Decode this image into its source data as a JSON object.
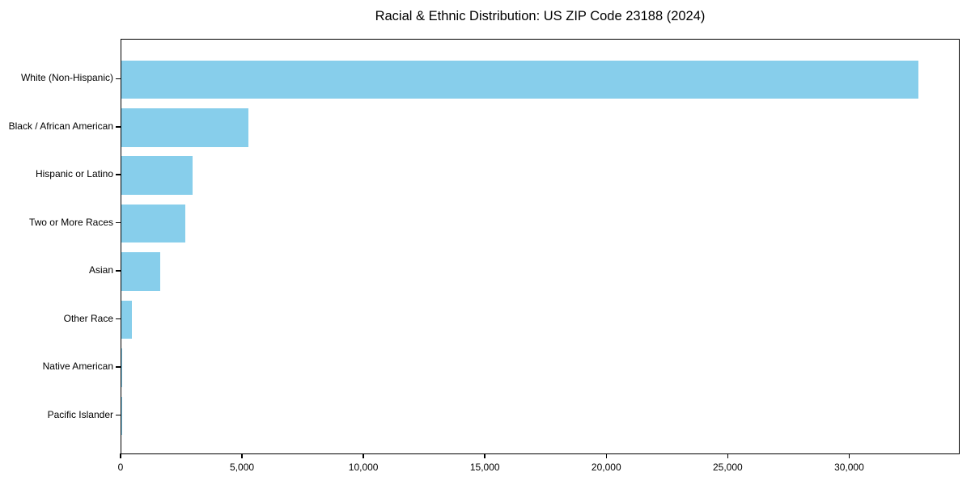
{
  "title": "Racial & Ethnic Distribution: US ZIP Code 23188 (2024)",
  "chart_data": {
    "type": "bar",
    "orientation": "horizontal",
    "title": "Racial & Ethnic Distribution: US ZIP Code 23188 (2024)",
    "xlabel": "",
    "ylabel": "",
    "categories": [
      "White (Non-Hispanic)",
      "Black / African American",
      "Hispanic or Latino",
      "Two or More Races",
      "Asian",
      "Other Race",
      "Native American",
      "Pacific Islander"
    ],
    "values": [
      32890,
      5250,
      2930,
      2630,
      1600,
      430,
      50,
      10
    ],
    "xlim": [
      0,
      34550
    ],
    "xticks": [
      0,
      5000,
      10000,
      15000,
      20000,
      25000,
      30000
    ],
    "xtick_labels": [
      "0",
      "5,000",
      "10,000",
      "15,000",
      "20,000",
      "25,000",
      "30,000"
    ],
    "grid": false,
    "legend": null,
    "bar_color": "#87CEEB"
  },
  "colors": {
    "bar": "#87CEEB",
    "text": "#000000",
    "spine": "#000000",
    "background": "#ffffff"
  }
}
